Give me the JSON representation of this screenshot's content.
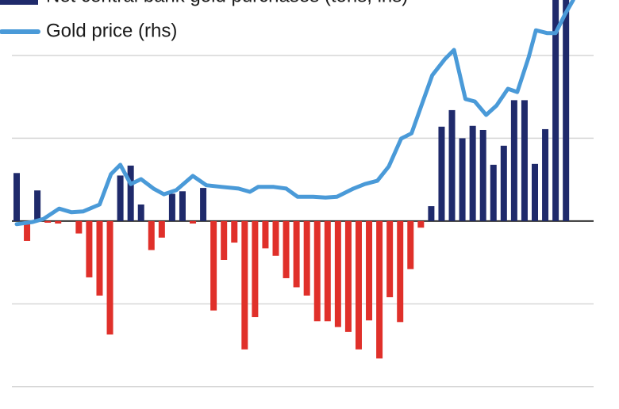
{
  "chart_data": {
    "type": "bar",
    "legend": "top-left",
    "grid": true,
    "ylim": [
      -227,
      267
    ],
    "yticks": [
      -200,
      -100,
      0,
      100,
      200
    ],
    "y2lim": [
      0,
      100
    ],
    "series": [
      {
        "name": "Net central bank gold purchases (tons, lhs)",
        "type": "bar",
        "color": "#1f2a6b",
        "negative_color": "#e0302a",
        "values": [
          58,
          -24,
          37,
          -2,
          -3,
          0,
          -15,
          -68,
          -90,
          -137,
          55,
          67,
          20,
          -35,
          -20,
          33,
          36,
          -3,
          40,
          -108,
          -47,
          -26,
          -155,
          -116,
          -33,
          -42,
          -69,
          -80,
          -90,
          -121,
          -121,
          -128,
          -134,
          -155,
          -120,
          -166,
          -92,
          -122,
          -58,
          -8,
          18,
          114,
          134,
          100,
          115,
          110,
          68,
          91,
          146,
          146,
          69,
          111,
          270,
          270
        ]
      },
      {
        "name": "Gold price (rhs)",
        "type": "line",
        "axis": "y2",
        "color": "#4a9ad8",
        "x": [
          0,
          1.5,
          2.6,
          4.1,
          5.3,
          6.4,
          8.0,
          9.1,
          10.0,
          11.0,
          12.0,
          13.2,
          14.2,
          15.4,
          17.0,
          18.3,
          19.8,
          21.4,
          22.5,
          23.3,
          24.8,
          26.0,
          27.1,
          28.6,
          29.8,
          30.9,
          32.5,
          33.6,
          34.8,
          35.9,
          37.1,
          38.1,
          39.0,
          40.1,
          41.3,
          42.2,
          43.3,
          44.2,
          45.3,
          46.3,
          47.4,
          48.3,
          49.4,
          50.1,
          51.2,
          52.0,
          52.9,
          53.7
        ],
        "values": [
          45.2,
          45.7,
          46.5,
          49.0,
          48.1,
          48.3,
          50.0,
          57.4,
          59.7,
          55.0,
          56.2,
          53.9,
          52.5,
          53.5,
          57.0,
          54.7,
          54.3,
          53.9,
          53.1,
          54.3,
          54.3,
          53.9,
          51.9,
          51.9,
          51.7,
          51.9,
          53.9,
          55.0,
          55.8,
          59.3,
          66.1,
          67.4,
          73.8,
          81.6,
          85.5,
          87.8,
          75.8,
          75.2,
          71.9,
          74.2,
          78.3,
          77.5,
          86.0,
          92.6,
          91.9,
          91.9,
          96.5,
          100
        ]
      }
    ]
  }
}
